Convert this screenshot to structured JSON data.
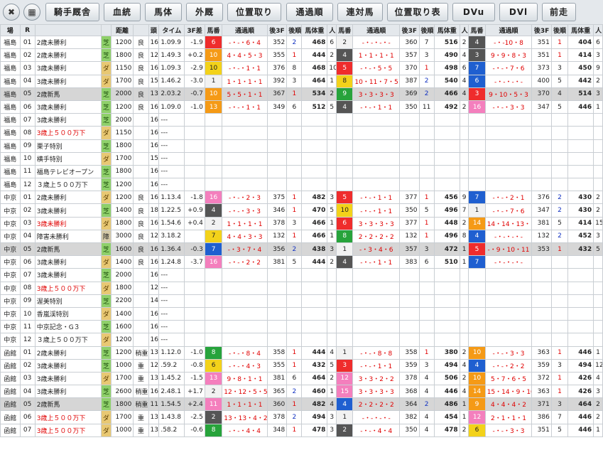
{
  "toolbar": {
    "close": "✖",
    "grid": "▦",
    "buttons": [
      "騎手厩舎",
      "血統",
      "馬体",
      "外厩",
      "位置取り",
      "通過順",
      "連対馬",
      "位置取り表",
      "DVu",
      "DVl",
      "前走"
    ]
  },
  "headers": [
    "場",
    "R",
    "",
    "",
    "距離",
    "",
    "頭",
    "タイム",
    "3F差",
    "馬番",
    "通過順",
    "後3F",
    "後順",
    "馬体重",
    "人",
    "馬番",
    "通過順",
    "後3F",
    "後順",
    "馬体重",
    "人",
    "馬番",
    "通過順",
    "後3F",
    "後順",
    "馬体重",
    "人"
  ],
  "colors": {
    "turf": "#8fd06a",
    "dirt": "#e8c873",
    "highlight": "#d6d6d6"
  },
  "gate_colors": {
    "1": "#f2f2f2",
    "2": "#555555",
    "3": "#ef2c2c",
    "4": "#1f5fd0",
    "5": "#f3d21a",
    "6": "#27a33b",
    "7": "#f59a16",
    "8": "#f47fbd"
  },
  "rows": [
    {
      "v": "福島",
      "r": "01",
      "n": "2歳未勝利",
      "s": "芝",
      "d": "1200",
      "c": "良",
      "h": "16",
      "t": "1.09.9",
      "f": "-1.9",
      "h1": [
        "6",
        "3",
        "-・-・6・4",
        "352",
        "2",
        "468",
        "6"
      ],
      "h2": [
        "2",
        "1",
        "-・-・-・-",
        "360",
        "7",
        "516",
        "2"
      ],
      "h3": [
        "4",
        "2",
        "-・-10・8",
        "351",
        "1",
        "404",
        "6"
      ]
    },
    {
      "v": "福島",
      "r": "02",
      "n": "2歳未勝利",
      "s": "芝",
      "d": "1800",
      "c": "良",
      "h": "12",
      "t": "1.49.3",
      "f": "+0.2",
      "h1": [
        "10",
        "7",
        "4・4・5・3",
        "355",
        "1",
        "444",
        "2"
      ],
      "h2": [
        "4",
        "2",
        "1・1・1・1",
        "357",
        "3",
        "490",
        "4"
      ],
      "h3": [
        "3",
        "2",
        "9・9・8・3",
        "351",
        "1",
        "414",
        "3"
      ]
    },
    {
      "v": "福島",
      "r": "03",
      "n": "3歳未勝利",
      "s": "ダ",
      "d": "1150",
      "c": "良",
      "h": "16",
      "t": "1.09.3",
      "f": "-2.9",
      "h1": [
        "10",
        "5",
        "-・-・1・1",
        "376",
        "8",
        "468",
        "10"
      ],
      "h2": [
        "5",
        "3",
        "-・-・5・5",
        "370",
        "1",
        "498",
        "6"
      ],
      "h3": [
        "7",
        "4",
        "-・-・7・6",
        "373",
        "3",
        "450",
        "9"
      ]
    },
    {
      "v": "福島",
      "r": "04",
      "n": "3歳未勝利",
      "s": "ダ",
      "d": "1700",
      "c": "良",
      "h": "15",
      "t": "1.46.2",
      "f": "-3.0",
      "h1": [
        "1",
        "1",
        "1・1・1・1",
        "392",
        "3",
        "464",
        "1"
      ],
      "h2": [
        "8",
        "5",
        "10・11・7・5",
        "387",
        "2",
        "540",
        "4"
      ],
      "h3": [
        "6",
        "4",
        "-・-・-・-",
        "400",
        "5",
        "442",
        "2"
      ]
    },
    {
      "v": "福島",
      "r": "05",
      "n": "2歳新馬",
      "s": "芝",
      "d": "2000",
      "c": "良",
      "h": "13",
      "t": "2.03.2",
      "f": "-0.7",
      "hl": true,
      "h1": [
        "10",
        "7",
        "5・5・1・1",
        "367",
        "1",
        "534",
        "2"
      ],
      "h2": [
        "9",
        "6",
        "3・3・3・3",
        "369",
        "2",
        "466",
        "4"
      ],
      "h3": [
        "3",
        "3",
        "9・10・5・3",
        "370",
        "4",
        "514",
        "3"
      ]
    },
    {
      "v": "福島",
      "r": "06",
      "n": "3歳未勝利",
      "s": "芝",
      "d": "1200",
      "c": "良",
      "h": "16",
      "t": "1.09.0",
      "f": "-1.0",
      "h1": [
        "13",
        "7",
        "-・-・1・1",
        "349",
        "6",
        "512",
        "5"
      ],
      "h2": [
        "4",
        "2",
        "-・-・1・1",
        "350",
        "11",
        "492",
        "2"
      ],
      "h3": [
        "16",
        "8",
        "-・-・3・3",
        "347",
        "5",
        "446",
        "1"
      ]
    },
    {
      "v": "福島",
      "r": "07",
      "n": "3歳未勝利",
      "s": "芝",
      "d": "2000",
      "c": "",
      "h": "16",
      "t": "---",
      "f": ""
    },
    {
      "v": "福島",
      "r": "08",
      "n": "3歳上５００万下",
      "s": "ダ",
      "d": "1150",
      "c": "",
      "h": "16",
      "t": "---",
      "f": "",
      "red": true
    },
    {
      "v": "福島",
      "r": "09",
      "n": "栗子特別",
      "s": "芝",
      "d": "1800",
      "c": "",
      "h": "16",
      "t": "---",
      "f": ""
    },
    {
      "v": "福島",
      "r": "10",
      "n": "横手特別",
      "s": "ダ",
      "d": "1700",
      "c": "",
      "h": "15",
      "t": "---",
      "f": ""
    },
    {
      "v": "福島",
      "r": "11",
      "n": "福島テレビオープン",
      "s": "芝",
      "d": "1800",
      "c": "",
      "h": "16",
      "t": "---",
      "f": ""
    },
    {
      "v": "福島",
      "r": "12",
      "n": "３歳上５００万下",
      "s": "芝",
      "d": "1200",
      "c": "",
      "h": "16",
      "t": "---",
      "f": ""
    },
    {
      "v": "中京",
      "r": "01",
      "n": "2歳未勝利",
      "s": "ダ",
      "d": "1200",
      "c": "良",
      "h": "16",
      "t": "1.13.4",
      "f": "-1.8",
      "h1": [
        "16",
        "8",
        "-・-・2・3",
        "375",
        "1",
        "482",
        "3"
      ],
      "h2": [
        "5",
        "3",
        "-・-・1・1",
        "377",
        "1",
        "456",
        "9"
      ],
      "h3": [
        "7",
        "4",
        "-・-・2・1",
        "376",
        "2",
        "430",
        "2"
      ]
    },
    {
      "v": "中京",
      "r": "02",
      "n": "3歳未勝利",
      "s": "芝",
      "d": "1400",
      "c": "良",
      "h": "18",
      "t": "1.22.5",
      "f": "+0.9",
      "h1": [
        "4",
        "2",
        "-・-・3・3",
        "346",
        "1",
        "470",
        "5"
      ],
      "h2": [
        "10",
        "5",
        "-・-・1・1",
        "350",
        "5",
        "496",
        "7"
      ],
      "h3": [
        "1",
        "1",
        "-・-・7・6",
        "347",
        "2",
        "430",
        "2"
      ]
    },
    {
      "v": "中京",
      "r": "03",
      "n": "3歳未勝利",
      "s": "ダ",
      "d": "1800",
      "c": "良",
      "h": "16",
      "t": "1.54.6",
      "f": "+0.4",
      "red": true,
      "h1": [
        "2",
        "1",
        "1・1・1・1",
        "378",
        "3",
        "466",
        "1"
      ],
      "h2": [
        "6",
        "3",
        "3・3・3・3",
        "377",
        "1",
        "448",
        "2"
      ],
      "h3": [
        "14",
        "7",
        "14・14・13・12",
        "381",
        "5",
        "414",
        "15"
      ]
    },
    {
      "v": "中京",
      "r": "04",
      "n": "障害未勝利",
      "s": "障",
      "d": "3000",
      "c": "良",
      "h": "12",
      "t": "3.18.2",
      "f": "",
      "h1": [
        "7",
        "5",
        "4・4・3・3",
        "132",
        "1",
        "466",
        "1"
      ],
      "h2": [
        "8",
        "6",
        "2・2・2・2",
        "132",
        "1",
        "496",
        "8"
      ],
      "h3": [
        "4",
        "4",
        "-・-・-・-",
        "132",
        "2",
        "452",
        "3"
      ]
    },
    {
      "v": "中京",
      "r": "05",
      "n": "2歳新馬",
      "s": "芝",
      "d": "1600",
      "c": "良",
      "h": "16",
      "t": "1.36.4",
      "f": "-0.3",
      "hl": true,
      "h1": [
        "7",
        "4",
        "-・3・7・4",
        "356",
        "2",
        "438",
        "3"
      ],
      "h2": [
        "1",
        "1",
        "-・3・4・6",
        "357",
        "3",
        "472",
        "1"
      ],
      "h3": [
        "5",
        "3",
        "-・9・10・11",
        "353",
        "1",
        "432",
        "5"
      ]
    },
    {
      "v": "中京",
      "r": "06",
      "n": "3歳未勝利",
      "s": "ダ",
      "d": "1400",
      "c": "良",
      "h": "16",
      "t": "1.24.8",
      "f": "-3.7",
      "h1": [
        "16",
        "8",
        "-・-・2・2",
        "381",
        "5",
        "444",
        "2"
      ],
      "h2": [
        "4",
        "2",
        "-・-・1・1",
        "383",
        "6",
        "510",
        "1"
      ],
      "h3": [
        "7",
        "4",
        "-・-・-・-",
        "",
        "",
        "",
        ""
      ]
    },
    {
      "v": "中京",
      "r": "07",
      "n": "3歳未勝利",
      "s": "芝",
      "d": "2000",
      "c": "",
      "h": "16",
      "t": "---",
      "f": ""
    },
    {
      "v": "中京",
      "r": "08",
      "n": "3歳上５００万下",
      "s": "ダ",
      "d": "1800",
      "c": "",
      "h": "12",
      "t": "---",
      "f": "",
      "red": true
    },
    {
      "v": "中京",
      "r": "09",
      "n": "渥美特別",
      "s": "芝",
      "d": "2200",
      "c": "",
      "h": "14",
      "t": "---",
      "f": ""
    },
    {
      "v": "中京",
      "r": "10",
      "n": "香嵐渓特別",
      "s": "ダ",
      "d": "1400",
      "c": "",
      "h": "16",
      "t": "---",
      "f": ""
    },
    {
      "v": "中京",
      "r": "11",
      "n": "中京記念・G３",
      "s": "芝",
      "d": "1600",
      "c": "",
      "h": "16",
      "t": "---",
      "f": ""
    },
    {
      "v": "中京",
      "r": "12",
      "n": "３歳上５００万下",
      "s": "ダ",
      "d": "1200",
      "c": "",
      "h": "16",
      "t": "---",
      "f": ""
    },
    {
      "v": "函館",
      "r": "01",
      "n": "2歳未勝利",
      "s": "芝",
      "d": "1200",
      "c": "稍重",
      "h": "13",
      "t": "1.12.0",
      "f": "-1.0",
      "h1": [
        "8",
        "6",
        "-・-・8・4",
        "358",
        "1",
        "444",
        "4"
      ],
      "h2": [
        "1",
        "1",
        "-・-・8・8",
        "358",
        "1",
        "380",
        "2"
      ],
      "h3": [
        "10",
        "7",
        "-・-・3・3",
        "363",
        "1",
        "446",
        "1"
      ]
    },
    {
      "v": "函館",
      "r": "02",
      "n": "3歳未勝利",
      "s": "芝",
      "d": "1000",
      "c": "重",
      "h": "12",
      "t": ".59.2",
      "f": "-0.8",
      "h1": [
        "6",
        "5",
        "-・-・4・3",
        "355",
        "1",
        "432",
        "5"
      ],
      "h2": [
        "3",
        "3",
        "-・-・1・1",
        "359",
        "3",
        "494",
        "4"
      ],
      "h3": [
        "4",
        "4",
        "-・-・2・2",
        "359",
        "3",
        "494",
        "12"
      ]
    },
    {
      "v": "函館",
      "r": "03",
      "n": "3歳未勝利",
      "s": "ダ",
      "d": "1700",
      "c": "重",
      "h": "13",
      "t": "1.45.2",
      "f": "-1.5",
      "h1": [
        "13",
        "8",
        "9・8・1・1",
        "381",
        "6",
        "464",
        "2"
      ],
      "h2": [
        "12",
        "8",
        "3・3・2・2",
        "378",
        "4",
        "506",
        "2"
      ],
      "h3": [
        "10",
        "7",
        "5・7・6・5",
        "372",
        "1",
        "426",
        "4"
      ]
    },
    {
      "v": "函館",
      "r": "04",
      "n": "3歳未勝利",
      "s": "芝",
      "d": "2600",
      "c": "稍重",
      "h": "16",
      "t": "2.48.1",
      "f": "+1.7",
      "h1": [
        "2",
        "1",
        "12・12・5・5",
        "365",
        "2",
        "460",
        "1"
      ],
      "h2": [
        "15",
        "8",
        "3・3・3・3",
        "368",
        "4",
        "446",
        "4"
      ],
      "h3": [
        "14",
        "7",
        "15・14・9・10",
        "363",
        "1",
        "426",
        "3"
      ]
    },
    {
      "v": "函館",
      "r": "05",
      "n": "2歳新馬",
      "s": "芝",
      "d": "1800",
      "c": "稍重",
      "h": "11",
      "t": "1.54.5",
      "f": "+2.4",
      "hl": true,
      "h1": [
        "11",
        "8",
        "1・1・1・1",
        "360",
        "1",
        "482",
        "4"
      ],
      "h2": [
        "4",
        "4",
        "2・2・2・2",
        "364",
        "2",
        "486",
        "1"
      ],
      "h3": [
        "9",
        "7",
        "4・4・4・2",
        "371",
        "3",
        "464",
        "2"
      ]
    },
    {
      "v": "函館",
      "r": "06",
      "n": "3歳上５００万下",
      "s": "ダ",
      "d": "1700",
      "c": "重",
      "h": "13",
      "t": "1.43.8",
      "f": "-2.5",
      "red": true,
      "h1": [
        "2",
        "2",
        "13・13・4・2",
        "378",
        "2",
        "494",
        "3"
      ],
      "h2": [
        "1",
        "1",
        "-・-・-・-",
        "382",
        "4",
        "454",
        "1"
      ],
      "h3": [
        "12",
        "8",
        "2・1・1・1",
        "386",
        "7",
        "446",
        "2"
      ]
    },
    {
      "v": "函館",
      "r": "07",
      "n": "3歳上５００万下",
      "s": "ダ",
      "d": "1000",
      "c": "重",
      "h": "13",
      "t": ".58.2",
      "f": "-0.6",
      "red": true,
      "h1": [
        "8",
        "6",
        "-・-・4・4",
        "348",
        "1",
        "478",
        "3"
      ],
      "h2": [
        "2",
        "2",
        "-・-・4・4",
        "350",
        "4",
        "478",
        "2"
      ],
      "h3": [
        "6",
        "5",
        "-・-・3・3",
        "351",
        "5",
        "446",
        "1"
      ]
    }
  ]
}
